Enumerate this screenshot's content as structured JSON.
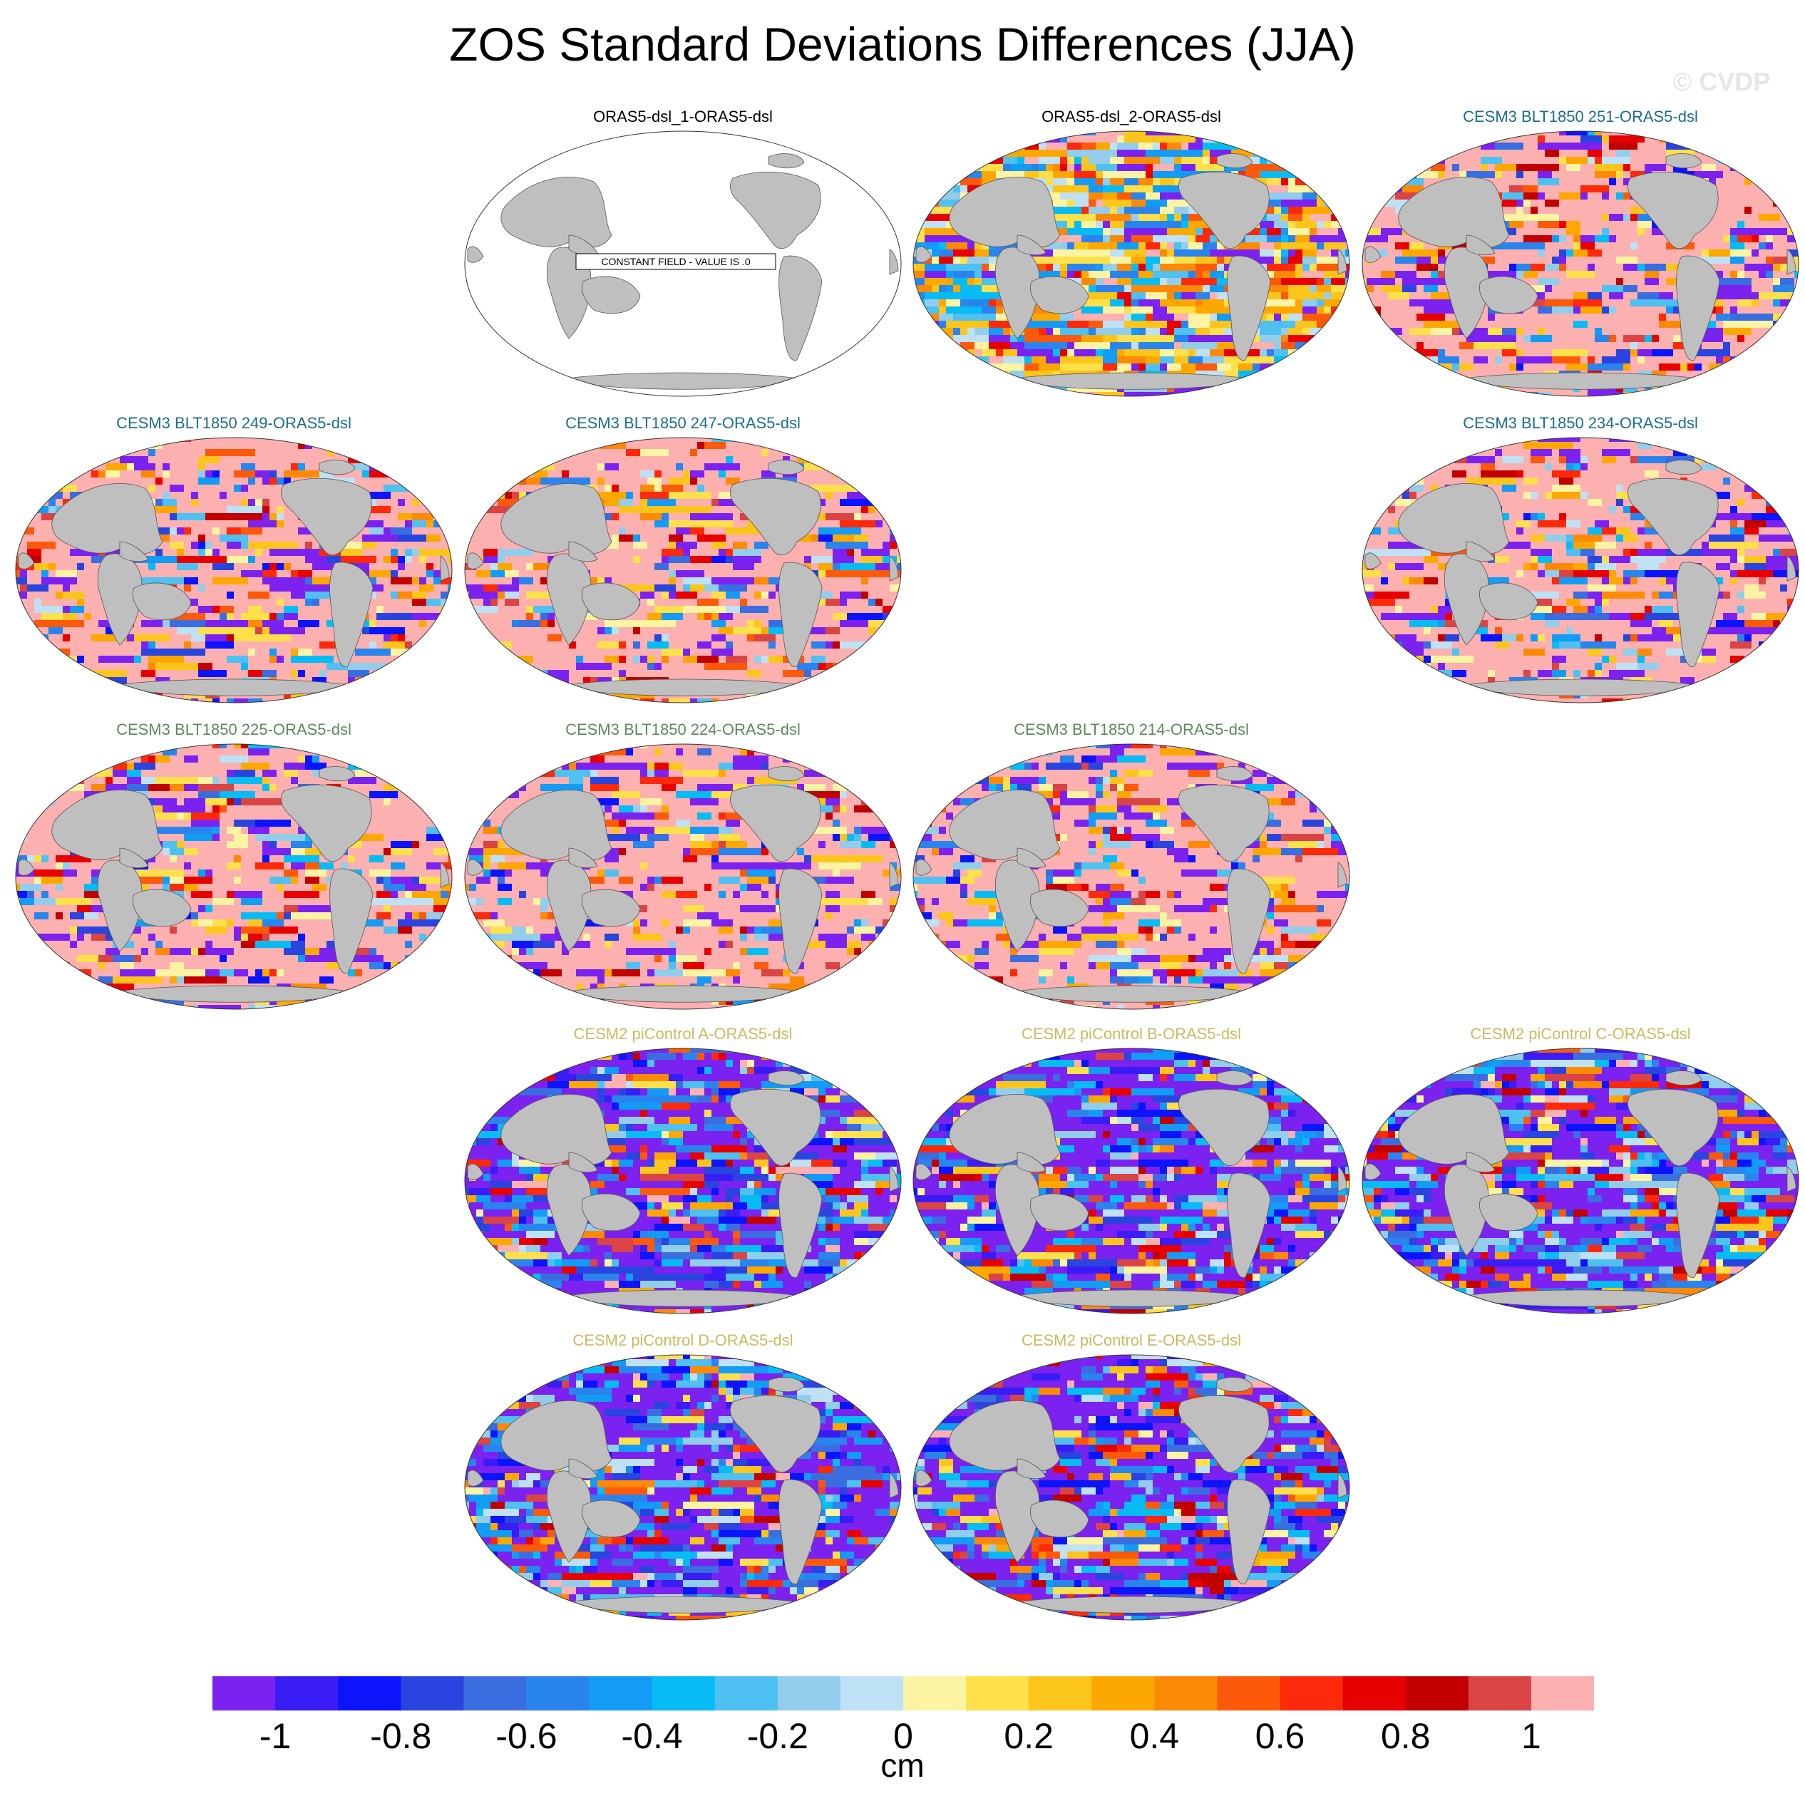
{
  "title": "ZOS Standard Deviations Differences (JJA)",
  "watermark": "© CVDP",
  "panels": [
    {
      "title": "ORAS5-dsl_1-ORAS5-dsl",
      "title_color": "#000000",
      "pattern": "constant",
      "constant_label": "CONSTANT FIELD - VALUE IS .0"
    },
    {
      "title": "ORAS5-dsl_2-ORAS5-dsl",
      "title_color": "#000000",
      "pattern": "mixed"
    },
    {
      "title": "CESM3 BLT1850 251-ORAS5-dsl",
      "title_color": "#1a6e8c",
      "pattern": "positive"
    },
    {
      "title": "CESM3 BLT1850 249-ORAS5-dsl",
      "title_color": "#1a6e8c",
      "pattern": "positive"
    },
    {
      "title": "CESM3 BLT1850 247-ORAS5-dsl",
      "title_color": "#1a6e8c",
      "pattern": "positive"
    },
    {
      "title": "CESM3 BLT1850 234-ORAS5-dsl",
      "title_color": "#1a6e8c",
      "pattern": "positive"
    },
    {
      "title": "CESM3 BLT1850 225-ORAS5-dsl",
      "title_color": "#5c8a5c",
      "pattern": "positive"
    },
    {
      "title": "CESM3 BLT1850 224-ORAS5-dsl",
      "title_color": "#5c8a5c",
      "pattern": "positive"
    },
    {
      "title": "CESM3 BLT1850 214-ORAS5-dsl",
      "title_color": "#5c8a5c",
      "pattern": "positive"
    },
    {
      "title": "CESM2 piControl A-ORAS5-dsl",
      "title_color": "#c9bb5f",
      "pattern": "negative"
    },
    {
      "title": "CESM2 piControl B-ORAS5-dsl",
      "title_color": "#c9bb5f",
      "pattern": "negative"
    },
    {
      "title": "CESM2 piControl C-ORAS5-dsl",
      "title_color": "#c9bb5f",
      "pattern": "negative"
    },
    {
      "title": "CESM2 piControl D-ORAS5-dsl",
      "title_color": "#c9bb5f",
      "pattern": "negative"
    },
    {
      "title": "CESM2 piControl E-ORAS5-dsl",
      "title_color": "#c9bb5f",
      "pattern": "negative"
    }
  ],
  "colorbar": {
    "colors": [
      "#7b22f0",
      "#3a1cf5",
      "#0b14fb",
      "#2a44e0",
      "#3a6ee0",
      "#2a84ee",
      "#129cf6",
      "#07bcf4",
      "#4fc0f2",
      "#93cdec",
      "#bfe1f5",
      "#fcf4a2",
      "#fde04a",
      "#fcc51c",
      "#fca800",
      "#fc8a06",
      "#fc5a0a",
      "#fc2a0a",
      "#e80000",
      "#c20000",
      "#da4444",
      "#fcb0b0"
    ],
    "tick_labels": [
      "-1",
      "-0.8",
      "-0.6",
      "-0.4",
      "-0.2",
      "0",
      "0.2",
      "0.4",
      "0.6",
      "0.8",
      "1"
    ],
    "units": "cm"
  },
  "land_color": "#bfbfbf"
}
